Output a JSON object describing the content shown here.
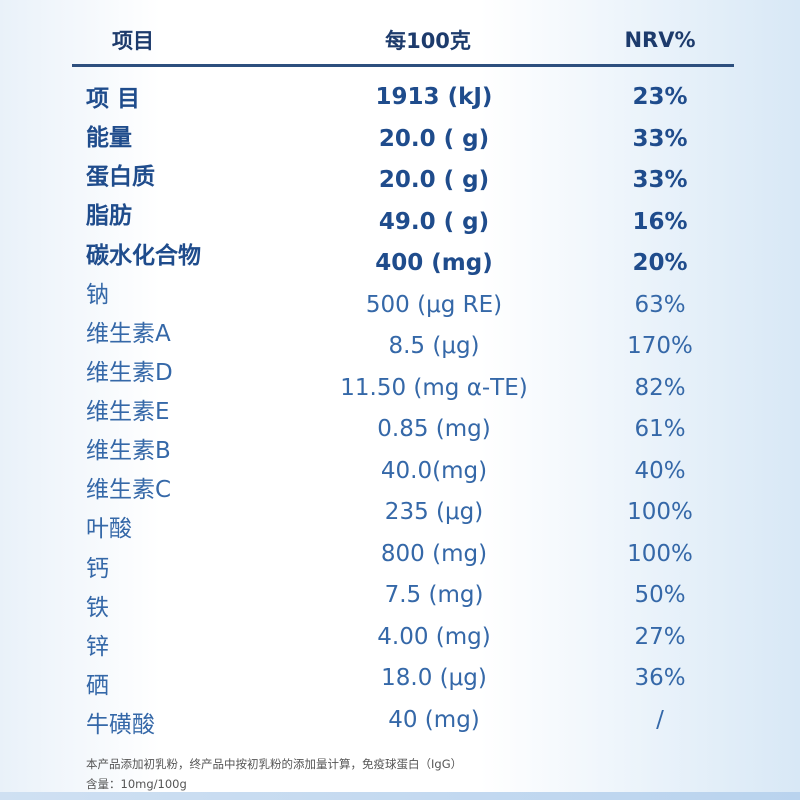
{
  "table": {
    "header": [
      "项目",
      "每100克",
      "NRV%"
    ],
    "labels": [
      "项 目",
      "能量",
      "蛋白质",
      "脂肪",
      "碳水化合物",
      "钠",
      "维生素A",
      "维生素D",
      "维生素E",
      "维生素B",
      "维生素C",
      "叶酸",
      "钙",
      "铁",
      "锌",
      "硒",
      "牛磺酸"
    ],
    "amounts": [
      "1913 (kJ)",
      "20.0 ( g)",
      "20.0 ( g)",
      "49.0 ( g)",
      "400 (mg)",
      "500 (μg RE)",
      "8.5 (μg)",
      "11.50 (mg α-TE)",
      "0.85 (mg)",
      "40.0(mg)",
      "235 (μg)",
      "800 (mg)",
      "7.5 (mg)",
      "4.00 (mg)",
      "18.0 (μg)",
      "40 (mg)"
    ],
    "nrv": [
      "23%",
      "33%",
      "33%",
      "16%",
      "20%",
      "63%",
      "170%",
      "82%",
      "61%",
      "40%",
      "100%",
      "100%",
      "50%",
      "27%",
      "36%",
      "/"
    ]
  },
  "footnote": [
    "本产品添加初乳粉，终产品中按初乳粉的添加量计算，免疫球蛋白（IgG）",
    "含量：10mg/100g"
  ]
}
